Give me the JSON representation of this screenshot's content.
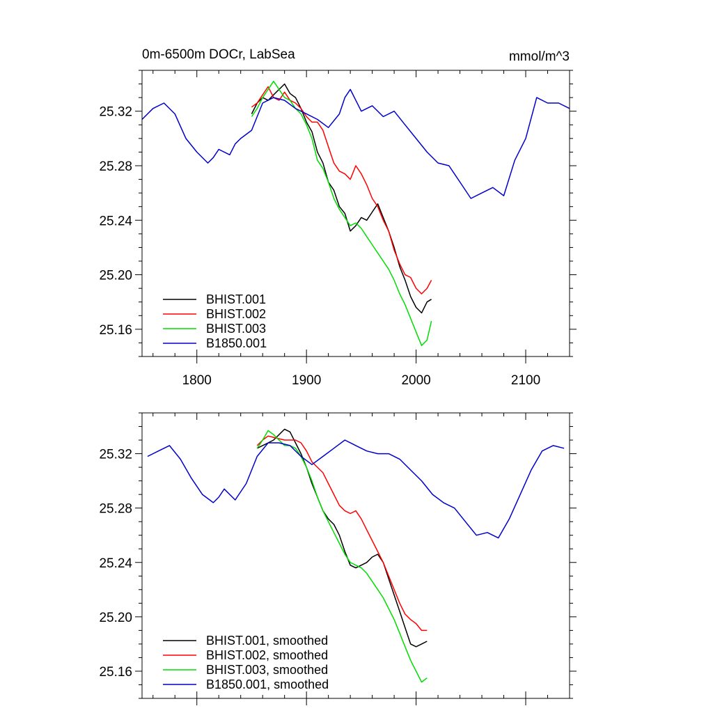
{
  "chart_data": [
    {
      "type": "line",
      "title": "0m-6500m DOCr, LabSea",
      "units_label": "mmol/m^3",
      "xlim": [
        1750,
        2140
      ],
      "ylim": [
        25.14,
        25.35
      ],
      "x_ticks": [
        1800,
        1900,
        2000,
        2100
      ],
      "x_tick_labels": [
        "1800",
        "1900",
        "2000",
        "2100"
      ],
      "y_ticks": [
        25.16,
        25.2,
        25.24,
        25.28,
        25.32
      ],
      "y_tick_labels": [
        "25.16",
        "25.20",
        "25.24",
        "25.28",
        "25.32"
      ],
      "legend_position": "bottom-left",
      "grid": false,
      "series": [
        {
          "name": "BHIST.001",
          "color": "#000000",
          "x": [
            1850,
            1855,
            1860,
            1865,
            1870,
            1875,
            1880,
            1885,
            1890,
            1895,
            1900,
            1905,
            1910,
            1915,
            1920,
            1925,
            1930,
            1935,
            1940,
            1945,
            1950,
            1955,
            1960,
            1965,
            1970,
            1975,
            1980,
            1985,
            1990,
            1995,
            2000,
            2005,
            2010,
            2014
          ],
          "y": [
            25.318,
            25.326,
            25.33,
            25.328,
            25.332,
            25.336,
            25.34,
            25.333,
            25.33,
            25.322,
            25.312,
            25.305,
            25.29,
            25.282,
            25.268,
            25.262,
            25.25,
            25.245,
            25.232,
            25.236,
            25.242,
            25.24,
            25.246,
            25.252,
            25.242,
            25.232,
            25.22,
            25.206,
            25.196,
            25.184,
            25.176,
            25.172,
            25.18,
            25.182
          ]
        },
        {
          "name": "BHIST.002",
          "color": "#ff0000",
          "x": [
            1850,
            1855,
            1860,
            1865,
            1870,
            1875,
            1880,
            1885,
            1890,
            1895,
            1900,
            1905,
            1910,
            1915,
            1920,
            1925,
            1930,
            1935,
            1940,
            1945,
            1950,
            1955,
            1960,
            1965,
            1970,
            1975,
            1980,
            1985,
            1990,
            1995,
            2000,
            2005,
            2010,
            2014
          ],
          "y": [
            25.323,
            25.326,
            25.332,
            25.338,
            25.33,
            25.328,
            25.334,
            25.328,
            25.326,
            25.322,
            25.316,
            25.312,
            25.312,
            25.306,
            25.294,
            25.282,
            25.276,
            25.274,
            25.27,
            25.28,
            25.274,
            25.266,
            25.256,
            25.25,
            25.24,
            25.232,
            25.218,
            25.208,
            25.2,
            25.198,
            25.19,
            25.186,
            25.19,
            25.196
          ]
        },
        {
          "name": "BHIST.003",
          "color": "#00dd00",
          "x": [
            1850,
            1855,
            1860,
            1865,
            1870,
            1875,
            1880,
            1885,
            1890,
            1895,
            1900,
            1905,
            1910,
            1915,
            1920,
            1925,
            1930,
            1935,
            1940,
            1945,
            1950,
            1955,
            1960,
            1965,
            1970,
            1975,
            1980,
            1985,
            1990,
            1995,
            2000,
            2005,
            2010,
            2014
          ],
          "y": [
            25.316,
            25.322,
            25.33,
            25.336,
            25.342,
            25.336,
            25.33,
            25.328,
            25.322,
            25.318,
            25.31,
            25.3,
            25.284,
            25.278,
            25.268,
            25.256,
            25.248,
            25.242,
            25.236,
            25.238,
            25.234,
            25.228,
            25.222,
            25.216,
            25.21,
            25.204,
            25.196,
            25.186,
            25.178,
            25.168,
            25.158,
            25.148,
            25.152,
            25.166
          ]
        },
        {
          "name": "B1850.001",
          "color": "#0000cc",
          "x": [
            1750,
            1760,
            1770,
            1780,
            1790,
            1800,
            1810,
            1815,
            1820,
            1830,
            1835,
            1840,
            1850,
            1860,
            1870,
            1880,
            1890,
            1900,
            1910,
            1920,
            1930,
            1935,
            1940,
            1950,
            1960,
            1970,
            1980,
            1990,
            2000,
            2010,
            2020,
            2030,
            2040,
            2050,
            2060,
            2070,
            2080,
            2090,
            2100,
            2110,
            2120,
            2130,
            2140
          ],
          "y": [
            25.314,
            25.322,
            25.326,
            25.318,
            25.3,
            25.29,
            25.282,
            25.286,
            25.292,
            25.288,
            25.296,
            25.3,
            25.306,
            25.326,
            25.33,
            25.328,
            25.322,
            25.318,
            25.314,
            25.308,
            25.318,
            25.33,
            25.336,
            25.32,
            25.324,
            25.316,
            25.32,
            25.31,
            25.3,
            25.29,
            25.282,
            25.28,
            25.268,
            25.256,
            25.26,
            25.264,
            25.258,
            25.284,
            25.3,
            25.33,
            25.326,
            25.326,
            25.322
          ]
        }
      ]
    },
    {
      "type": "line",
      "xlim": [
        1750,
        2140
      ],
      "ylim": [
        25.14,
        25.35
      ],
      "x_ticks": [
        1800,
        1900,
        2000,
        2100
      ],
      "y_ticks": [
        25.16,
        25.2,
        25.24,
        25.28,
        25.32
      ],
      "y_tick_labels": [
        "25.16",
        "25.20",
        "25.24",
        "25.28",
        "25.32"
      ],
      "legend_position": "bottom-left",
      "grid": false,
      "series": [
        {
          "name": "BHIST.001, smoothed",
          "color": "#000000",
          "x": [
            1855,
            1860,
            1865,
            1870,
            1875,
            1880,
            1885,
            1890,
            1895,
            1900,
            1905,
            1910,
            1915,
            1920,
            1925,
            1930,
            1935,
            1940,
            1945,
            1950,
            1955,
            1960,
            1965,
            1970,
            1975,
            1980,
            1985,
            1990,
            1995,
            2000,
            2005,
            2010
          ],
          "y": [
            25.324,
            25.326,
            25.328,
            25.33,
            25.334,
            25.338,
            25.336,
            25.328,
            25.32,
            25.31,
            25.298,
            25.288,
            25.278,
            25.272,
            25.268,
            25.26,
            25.248,
            25.238,
            25.236,
            25.238,
            25.24,
            25.244,
            25.246,
            25.24,
            25.228,
            25.216,
            25.204,
            25.192,
            25.18,
            25.178,
            25.18,
            25.182
          ]
        },
        {
          "name": "BHIST.002, smoothed",
          "color": "#ff0000",
          "x": [
            1855,
            1860,
            1865,
            1870,
            1875,
            1880,
            1885,
            1890,
            1895,
            1900,
            1905,
            1910,
            1915,
            1920,
            1925,
            1930,
            1935,
            1940,
            1945,
            1950,
            1955,
            1960,
            1965,
            1970,
            1975,
            1980,
            1985,
            1990,
            1995,
            2000,
            2005,
            2010
          ],
          "y": [
            25.326,
            25.33,
            25.333,
            25.332,
            25.331,
            25.33,
            25.33,
            25.33,
            25.328,
            25.322,
            25.314,
            25.31,
            25.306,
            25.298,
            25.29,
            25.282,
            25.278,
            25.276,
            25.278,
            25.272,
            25.264,
            25.256,
            25.248,
            25.24,
            25.23,
            25.22,
            25.21,
            25.202,
            25.198,
            25.195,
            25.19,
            25.19
          ]
        },
        {
          "name": "BHIST.003, smoothed",
          "color": "#00dd00",
          "x": [
            1855,
            1860,
            1865,
            1870,
            1875,
            1880,
            1885,
            1890,
            1895,
            1900,
            1905,
            1910,
            1915,
            1920,
            1925,
            1930,
            1935,
            1940,
            1945,
            1950,
            1955,
            1960,
            1965,
            1970,
            1975,
            1980,
            1985,
            1990,
            1995,
            2000,
            2005,
            2010
          ],
          "y": [
            25.324,
            25.33,
            25.337,
            25.334,
            25.33,
            25.326,
            25.326,
            25.324,
            25.318,
            25.31,
            25.3,
            25.288,
            25.278,
            25.27,
            25.262,
            25.254,
            25.246,
            25.24,
            25.238,
            25.236,
            25.232,
            25.226,
            25.22,
            25.214,
            25.206,
            25.198,
            25.188,
            25.178,
            25.168,
            25.16,
            25.152,
            25.155
          ]
        },
        {
          "name": "B1850.001, smoothed",
          "color": "#0000cc",
          "x": [
            1755,
            1765,
            1775,
            1785,
            1795,
            1805,
            1815,
            1820,
            1825,
            1835,
            1845,
            1855,
            1865,
            1875,
            1885,
            1895,
            1905,
            1915,
            1925,
            1935,
            1945,
            1955,
            1965,
            1975,
            1985,
            1995,
            2005,
            2015,
            2025,
            2035,
            2045,
            2055,
            2065,
            2075,
            2085,
            2095,
            2105,
            2115,
            2125,
            2135
          ],
          "y": [
            25.318,
            25.322,
            25.326,
            25.316,
            25.302,
            25.29,
            25.284,
            25.288,
            25.294,
            25.286,
            25.298,
            25.318,
            25.328,
            25.328,
            25.326,
            25.318,
            25.312,
            25.318,
            25.324,
            25.33,
            25.326,
            25.322,
            25.32,
            25.32,
            25.316,
            25.308,
            25.3,
            25.29,
            25.284,
            25.28,
            25.27,
            25.26,
            25.262,
            25.258,
            25.272,
            25.29,
            25.308,
            25.322,
            25.326,
            25.324
          ]
        }
      ]
    }
  ]
}
